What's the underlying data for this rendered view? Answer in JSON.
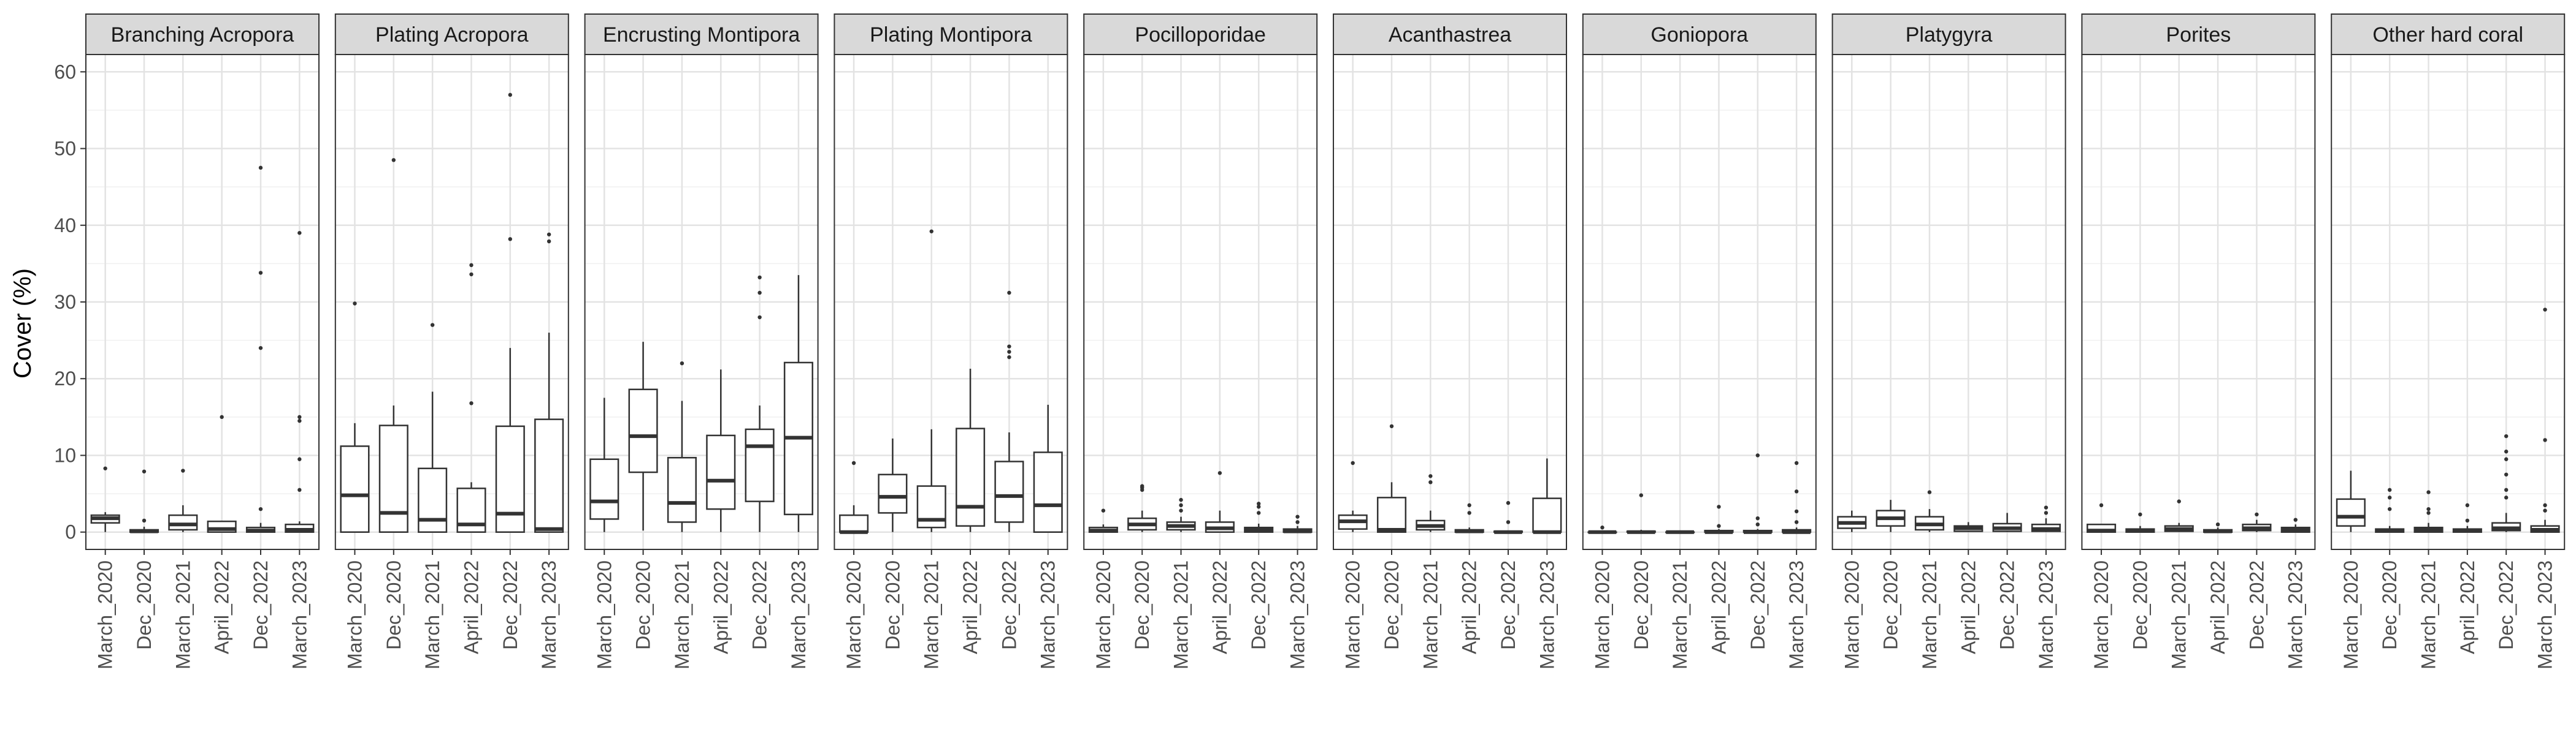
{
  "chart_data": {
    "type": "boxplot",
    "ylabel": "Cover (%)",
    "ylim": [
      0,
      60
    ],
    "yticks": [
      0,
      10,
      20,
      30,
      40,
      50,
      60
    ],
    "categories": [
      "March_2020",
      "Dec_2020",
      "March_2021",
      "April_2022",
      "Dec_2022",
      "March_2023"
    ],
    "grid": true,
    "panels": [
      {
        "title": "Branching Acropora",
        "boxes": [
          {
            "q1": 1.2,
            "median": 1.8,
            "q3": 2.2,
            "wlo": 0.0,
            "whi": 2.6,
            "outliers": [
              8.3
            ]
          },
          {
            "q1": 0.0,
            "median": 0.1,
            "q3": 0.3,
            "wlo": 0.0,
            "whi": 0.7,
            "outliers": [
              1.5,
              7.9
            ]
          },
          {
            "q1": 0.3,
            "median": 1.0,
            "q3": 2.2,
            "wlo": 0.0,
            "whi": 3.5,
            "outliers": [
              8.0
            ]
          },
          {
            "q1": 0.0,
            "median": 0.4,
            "q3": 1.4,
            "wlo": 0.0,
            "whi": 1.4,
            "outliers": [
              15.0
            ]
          },
          {
            "q1": 0.0,
            "median": 0.2,
            "q3": 0.6,
            "wlo": 0.0,
            "whi": 1.2,
            "outliers": [
              3.0,
              24.0,
              33.8,
              47.5
            ]
          },
          {
            "q1": 0.0,
            "median": 0.3,
            "q3": 1.0,
            "wlo": 0.0,
            "whi": 1.4,
            "outliers": [
              5.5,
              9.5,
              14.5,
              15.0,
              39.0
            ]
          }
        ]
      },
      {
        "title": "Plating Acropora",
        "boxes": [
          {
            "q1": 0.0,
            "median": 4.8,
            "q3": 11.2,
            "wlo": 0.0,
            "whi": 14.2,
            "outliers": [
              29.8
            ]
          },
          {
            "q1": 0.0,
            "median": 2.5,
            "q3": 13.9,
            "wlo": 0.0,
            "whi": 16.5,
            "outliers": [
              48.5
            ]
          },
          {
            "q1": 0.0,
            "median": 1.6,
            "q3": 8.3,
            "wlo": 0.0,
            "whi": 18.3,
            "outliers": [
              27.0
            ]
          },
          {
            "q1": 0.0,
            "median": 1.0,
            "q3": 5.7,
            "wlo": 0.0,
            "whi": 6.5,
            "outliers": [
              16.8,
              33.6,
              34.8
            ]
          },
          {
            "q1": 0.0,
            "median": 2.4,
            "q3": 13.8,
            "wlo": 0.0,
            "whi": 24.0,
            "outliers": [
              38.2,
              57.0
            ]
          },
          {
            "q1": 0.0,
            "median": 0.4,
            "q3": 14.7,
            "wlo": 0.0,
            "whi": 26.0,
            "outliers": [
              37.9,
              38.8
            ]
          }
        ]
      },
      {
        "title": "Encrusting Montipora",
        "boxes": [
          {
            "q1": 1.7,
            "median": 4.0,
            "q3": 9.5,
            "wlo": 0.0,
            "whi": 17.5,
            "outliers": []
          },
          {
            "q1": 7.8,
            "median": 12.5,
            "q3": 18.6,
            "wlo": 0.2,
            "whi": 24.8,
            "outliers": []
          },
          {
            "q1": 1.3,
            "median": 3.8,
            "q3": 9.7,
            "wlo": 0.0,
            "whi": 17.1,
            "outliers": [
              22.0
            ]
          },
          {
            "q1": 3.0,
            "median": 6.7,
            "q3": 12.6,
            "wlo": 0.0,
            "whi": 21.2,
            "outliers": []
          },
          {
            "q1": 4.0,
            "median": 11.2,
            "q3": 13.4,
            "wlo": 0.0,
            "whi": 16.5,
            "outliers": [
              28.0,
              31.2,
              33.2
            ]
          },
          {
            "q1": 2.3,
            "median": 12.3,
            "q3": 22.1,
            "wlo": 0.0,
            "whi": 33.5,
            "outliers": []
          }
        ]
      },
      {
        "title": "Plating Montipora",
        "boxes": [
          {
            "q1": 0.0,
            "median": 0.0,
            "q3": 2.2,
            "wlo": 0.0,
            "whi": 3.5,
            "outliers": [
              9.0
            ]
          },
          {
            "q1": 2.5,
            "median": 4.6,
            "q3": 7.5,
            "wlo": 0.0,
            "whi": 12.2,
            "outliers": []
          },
          {
            "q1": 0.6,
            "median": 1.6,
            "q3": 6.0,
            "wlo": 0.0,
            "whi": 13.4,
            "outliers": [
              39.2
            ]
          },
          {
            "q1": 0.8,
            "median": 3.3,
            "q3": 13.5,
            "wlo": 0.0,
            "whi": 21.3,
            "outliers": []
          },
          {
            "q1": 1.3,
            "median": 4.7,
            "q3": 9.2,
            "wlo": 0.0,
            "whi": 13.0,
            "outliers": [
              22.8,
              23.5,
              24.2,
              31.2
            ]
          },
          {
            "q1": 0.0,
            "median": 3.5,
            "q3": 10.4,
            "wlo": 0.0,
            "whi": 16.6,
            "outliers": []
          }
        ]
      },
      {
        "title": "Pocilloporidae",
        "boxes": [
          {
            "q1": 0.0,
            "median": 0.2,
            "q3": 0.6,
            "wlo": 0.0,
            "whi": 1.0,
            "outliers": [
              2.8
            ]
          },
          {
            "q1": 0.3,
            "median": 1.0,
            "q3": 1.8,
            "wlo": 0.0,
            "whi": 2.8,
            "outliers": [
              5.5,
              5.8,
              6.0
            ]
          },
          {
            "q1": 0.3,
            "median": 0.8,
            "q3": 1.3,
            "wlo": 0.0,
            "whi": 2.0,
            "outliers": [
              2.8,
              3.5,
              4.2
            ]
          },
          {
            "q1": 0.0,
            "median": 0.5,
            "q3": 1.3,
            "wlo": 0.0,
            "whi": 2.8,
            "outliers": [
              7.7
            ]
          },
          {
            "q1": 0.0,
            "median": 0.3,
            "q3": 0.6,
            "wlo": 0.0,
            "whi": 1.1,
            "outliers": [
              2.5,
              3.3,
              3.7
            ]
          },
          {
            "q1": 0.0,
            "median": 0.1,
            "q3": 0.4,
            "wlo": 0.0,
            "whi": 0.8,
            "outliers": [
              1.3,
              2.0
            ]
          }
        ]
      },
      {
        "title": "Acanthastrea",
        "boxes": [
          {
            "q1": 0.4,
            "median": 1.4,
            "q3": 2.2,
            "wlo": 0.0,
            "whi": 2.8,
            "outliers": [
              9.0
            ]
          },
          {
            "q1": 0.0,
            "median": 0.3,
            "q3": 4.5,
            "wlo": 0.0,
            "whi": 6.5,
            "outliers": [
              13.8
            ]
          },
          {
            "q1": 0.3,
            "median": 0.8,
            "q3": 1.5,
            "wlo": 0.0,
            "whi": 2.8,
            "outliers": [
              6.5,
              7.3
            ]
          },
          {
            "q1": 0.0,
            "median": 0.1,
            "q3": 0.3,
            "wlo": 0.0,
            "whi": 0.6,
            "outliers": [
              2.5,
              3.5
            ]
          },
          {
            "q1": 0.0,
            "median": 0.0,
            "q3": 0.1,
            "wlo": 0.0,
            "whi": 0.2,
            "outliers": [
              1.3,
              3.8
            ]
          },
          {
            "q1": 0.0,
            "median": 0.0,
            "q3": 4.4,
            "wlo": 0.0,
            "whi": 9.6,
            "outliers": []
          }
        ]
      },
      {
        "title": "Goniopora",
        "boxes": [
          {
            "q1": 0.0,
            "median": 0.0,
            "q3": 0.0,
            "wlo": 0.0,
            "whi": 0.0,
            "outliers": [
              0.6
            ]
          },
          {
            "q1": 0.0,
            "median": 0.0,
            "q3": 0.1,
            "wlo": 0.0,
            "whi": 0.3,
            "outliers": [
              4.8
            ]
          },
          {
            "q1": 0.0,
            "median": 0.0,
            "q3": 0.0,
            "wlo": 0.0,
            "whi": 0.0,
            "outliers": []
          },
          {
            "q1": 0.0,
            "median": 0.0,
            "q3": 0.2,
            "wlo": 0.0,
            "whi": 0.4,
            "outliers": [
              0.8,
              3.3
            ]
          },
          {
            "q1": 0.0,
            "median": 0.0,
            "q3": 0.2,
            "wlo": 0.0,
            "whi": 0.4,
            "outliers": [
              1.0,
              1.8,
              10.0
            ]
          },
          {
            "q1": 0.0,
            "median": 0.0,
            "q3": 0.3,
            "wlo": 0.0,
            "whi": 0.6,
            "outliers": [
              1.3,
              2.7,
              5.3,
              9.0
            ]
          }
        ]
      },
      {
        "title": "Platygyra",
        "boxes": [
          {
            "q1": 0.5,
            "median": 1.2,
            "q3": 2.0,
            "wlo": 0.0,
            "whi": 2.8,
            "outliers": []
          },
          {
            "q1": 0.8,
            "median": 1.8,
            "q3": 2.8,
            "wlo": 0.0,
            "whi": 4.2,
            "outliers": []
          },
          {
            "q1": 0.3,
            "median": 1.0,
            "q3": 2.0,
            "wlo": 0.0,
            "whi": 3.0,
            "outliers": [
              5.2
            ]
          },
          {
            "q1": 0.1,
            "median": 0.5,
            "q3": 0.8,
            "wlo": 0.0,
            "whi": 1.3,
            "outliers": []
          },
          {
            "q1": 0.1,
            "median": 0.5,
            "q3": 1.1,
            "wlo": 0.0,
            "whi": 2.5,
            "outliers": []
          },
          {
            "q1": 0.1,
            "median": 0.4,
            "q3": 1.0,
            "wlo": 0.0,
            "whi": 1.8,
            "outliers": [
              2.5,
              3.2
            ]
          }
        ]
      },
      {
        "title": "Porites",
        "boxes": [
          {
            "q1": 0.0,
            "median": 0.2,
            "q3": 1.0,
            "wlo": 0.0,
            "whi": 1.0,
            "outliers": [
              3.5
            ]
          },
          {
            "q1": 0.0,
            "median": 0.2,
            "q3": 0.4,
            "wlo": 0.0,
            "whi": 0.8,
            "outliers": [
              2.3
            ]
          },
          {
            "q1": 0.1,
            "median": 0.4,
            "q3": 0.8,
            "wlo": 0.0,
            "whi": 1.2,
            "outliers": [
              4.0
            ]
          },
          {
            "q1": 0.0,
            "median": 0.1,
            "q3": 0.3,
            "wlo": 0.0,
            "whi": 0.6,
            "outliers": [
              1.0
            ]
          },
          {
            "q1": 0.2,
            "median": 0.5,
            "q3": 1.0,
            "wlo": 0.0,
            "whi": 1.6,
            "outliers": [
              2.3
            ]
          },
          {
            "q1": 0.0,
            "median": 0.3,
            "q3": 0.6,
            "wlo": 0.0,
            "whi": 1.0,
            "outliers": [
              1.6
            ]
          }
        ]
      },
      {
        "title": "Other hard coral",
        "boxes": [
          {
            "q1": 0.8,
            "median": 2.0,
            "q3": 4.3,
            "wlo": 0.0,
            "whi": 8.0,
            "outliers": []
          },
          {
            "q1": 0.0,
            "median": 0.2,
            "q3": 0.4,
            "wlo": 0.0,
            "whi": 0.8,
            "outliers": [
              3.0,
              4.5,
              5.5
            ]
          },
          {
            "q1": 0.0,
            "median": 0.3,
            "q3": 0.6,
            "wlo": 0.0,
            "whi": 1.2,
            "outliers": [
              2.5,
              3.0,
              5.2
            ]
          },
          {
            "q1": 0.0,
            "median": 0.2,
            "q3": 0.4,
            "wlo": 0.0,
            "whi": 0.8,
            "outliers": [
              1.5,
              3.5
            ]
          },
          {
            "q1": 0.2,
            "median": 0.5,
            "q3": 1.2,
            "wlo": 0.0,
            "whi": 2.5,
            "outliers": [
              4.5,
              5.5,
              7.5,
              9.5,
              10.5,
              12.5
            ]
          },
          {
            "q1": 0.0,
            "median": 0.3,
            "q3": 0.8,
            "wlo": 0.0,
            "whi": 1.6,
            "outliers": [
              2.8,
              3.5,
              12.0,
              29.0
            ]
          }
        ]
      }
    ]
  }
}
